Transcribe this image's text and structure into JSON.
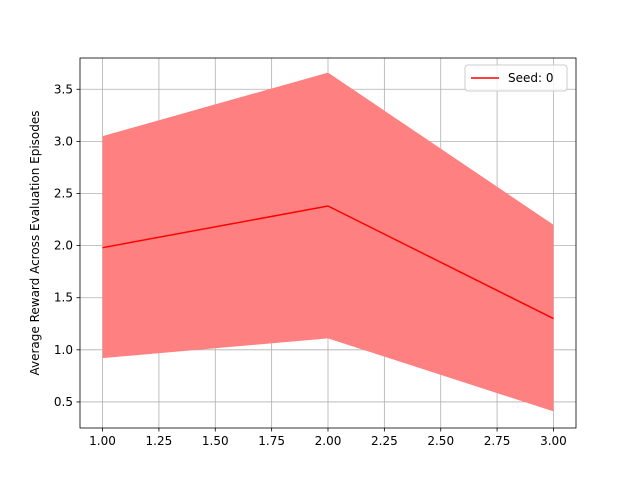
{
  "chart_data": {
    "type": "line",
    "title": "",
    "xlabel": "",
    "ylabel": "Average Reward Across Evaluation Episodes",
    "xlim": [
      0.9,
      3.1
    ],
    "ylim": [
      0.25,
      3.8
    ],
    "xticks": [
      1.0,
      1.25,
      1.5,
      1.75,
      2.0,
      2.25,
      2.5,
      2.75,
      3.0
    ],
    "xtick_labels": [
      "1.00",
      "1.25",
      "1.50",
      "1.75",
      "2.00",
      "2.25",
      "2.50",
      "2.75",
      "3.00"
    ],
    "yticks": [
      0.5,
      1.0,
      1.5,
      2.0,
      2.5,
      3.0,
      3.5
    ],
    "ytick_labels": [
      "0.5",
      "1.0",
      "1.5",
      "2.0",
      "2.5",
      "3.0",
      "3.5"
    ],
    "grid": true,
    "legend_position": "top-right",
    "series": [
      {
        "name": "Seed: 0",
        "color": "#ff0000",
        "band_color": "#ff8080",
        "x": [
          1.0,
          2.0,
          3.0
        ],
        "y": [
          1.98,
          2.38,
          1.3
        ],
        "upper": [
          3.05,
          3.66,
          2.2
        ],
        "lower": [
          0.92,
          1.11,
          0.41
        ]
      }
    ]
  }
}
